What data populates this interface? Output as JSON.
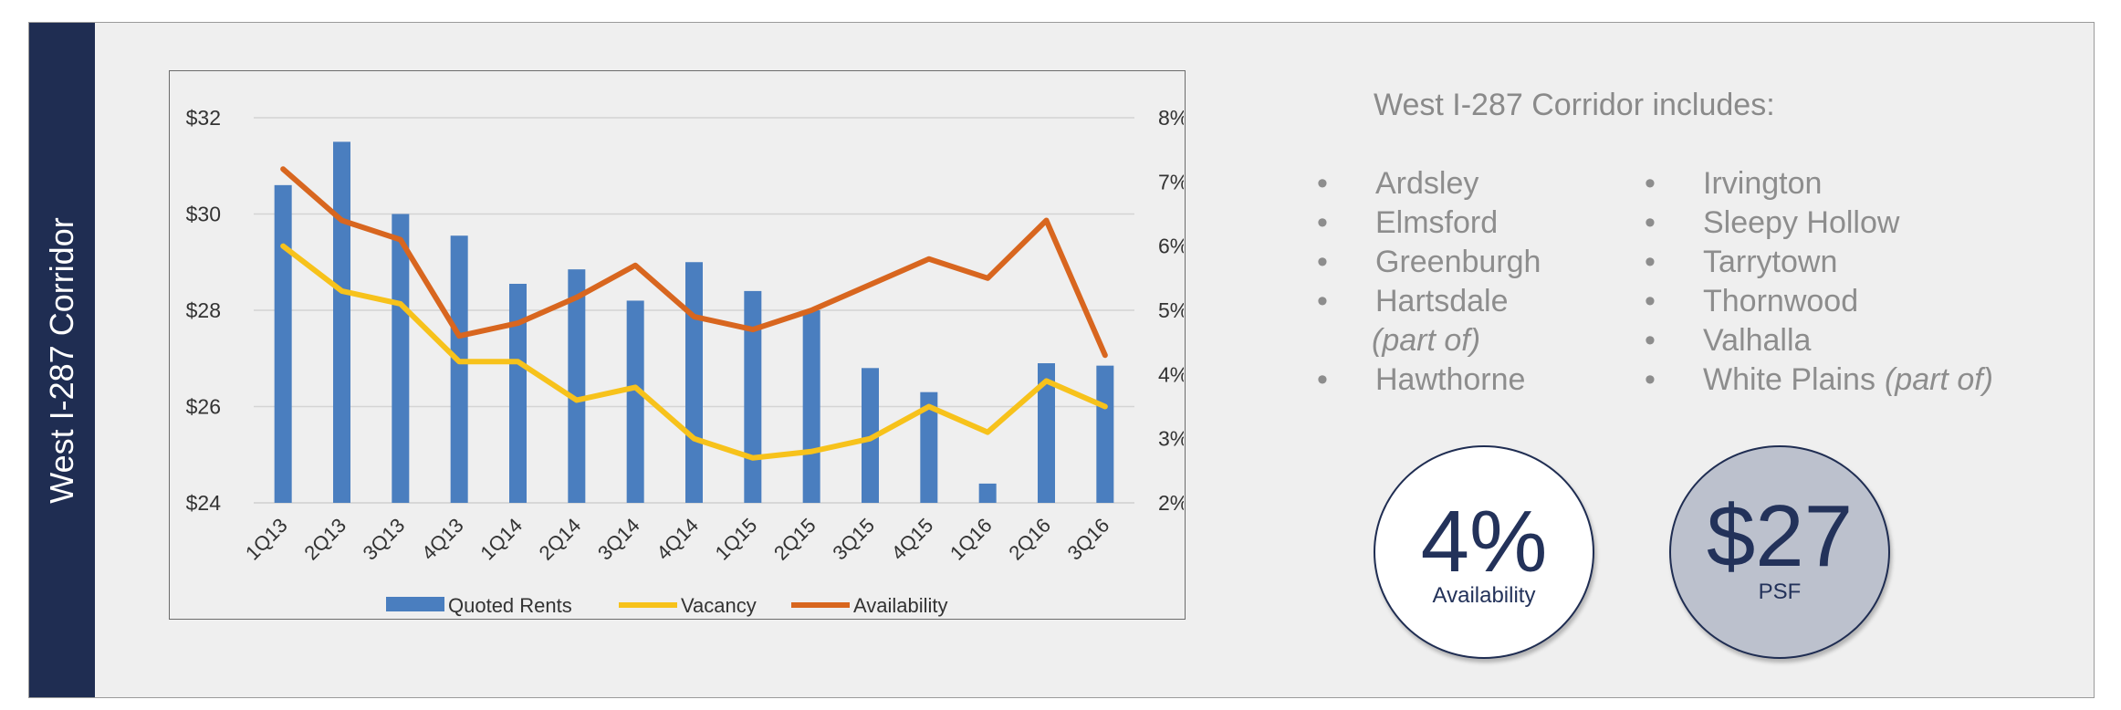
{
  "sidebar": {
    "title": "West I-287 Corridor"
  },
  "submarket": {
    "title": "West I-287 Corridor includes:",
    "bullet": "•",
    "left_items": [
      {
        "name": "Ardsley",
        "note": ""
      },
      {
        "name": "Elmsford",
        "note": ""
      },
      {
        "name": "Greenburgh",
        "note": ""
      },
      {
        "name": "Hartsdale",
        "note": "(part of)"
      },
      {
        "name": "Hawthorne",
        "note": ""
      }
    ],
    "right_items": [
      {
        "name": "Irvington",
        "note": ""
      },
      {
        "name": "Sleepy Hollow",
        "note": ""
      },
      {
        "name": "Tarrytown",
        "note": ""
      },
      {
        "name": "Thornwood",
        "note": ""
      },
      {
        "name": "Valhalla",
        "note": ""
      },
      {
        "name": "White Plains",
        "note": "(part of)"
      }
    ]
  },
  "stats": {
    "availability": {
      "value": "4%",
      "label": "Availability"
    },
    "rent": {
      "value": "$27",
      "label": "PSF"
    }
  },
  "colors": {
    "sidebar": "#1f2d52",
    "bars": "#4a7ebf",
    "vacancy": "#f7c21b",
    "availability": "#d8661f",
    "stat_circle_dark": "#bcc1cd"
  },
  "chart_data": {
    "type": "bar",
    "categories": [
      "1Q13",
      "2Q13",
      "3Q13",
      "4Q13",
      "1Q14",
      "2Q14",
      "3Q14",
      "4Q14",
      "1Q15",
      "2Q15",
      "3Q15",
      "4Q15",
      "1Q16",
      "2Q16",
      "3Q16"
    ],
    "series": [
      {
        "name": "Quoted Rents",
        "type": "bar",
        "axis": "left",
        "values": [
          30.6,
          31.5,
          30.0,
          29.55,
          28.55,
          28.85,
          28.2,
          29.0,
          28.4,
          28.0,
          26.8,
          26.3,
          24.4,
          26.9,
          26.85
        ]
      },
      {
        "name": "Vacancy",
        "type": "line",
        "axis": "right",
        "values": [
          6.0,
          5.3,
          5.1,
          4.2,
          4.2,
          3.6,
          3.8,
          3.0,
          2.7,
          2.8,
          3.0,
          3.5,
          3.1,
          3.9,
          3.5
        ]
      },
      {
        "name": "Availability",
        "type": "line",
        "axis": "right",
        "values": [
          7.2,
          6.4,
          6.1,
          4.6,
          4.8,
          5.2,
          5.7,
          4.9,
          4.7,
          5.0,
          5.4,
          5.8,
          5.5,
          6.4,
          4.3
        ]
      }
    ],
    "y_left": {
      "ticks": [
        "$24",
        "$26",
        "$28",
        "$30",
        "$32"
      ],
      "tick_values": [
        24,
        26,
        28,
        30,
        32
      ],
      "ylim": [
        24,
        32
      ]
    },
    "y_right": {
      "ticks": [
        "2%",
        "3%",
        "4%",
        "5%",
        "6%",
        "7%",
        "8%"
      ],
      "tick_values": [
        2,
        3,
        4,
        5,
        6,
        7,
        8
      ],
      "ylim": [
        2,
        8
      ]
    },
    "grid": true,
    "legend": "bottom",
    "title": "",
    "xlabel": "",
    "ylabel": ""
  }
}
